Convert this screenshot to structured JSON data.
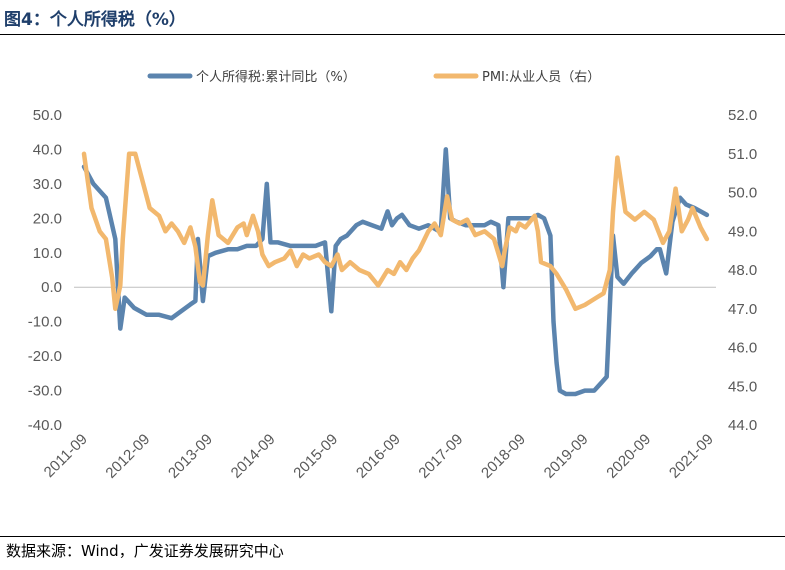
{
  "figure": {
    "title": "图4：个人所得税（%）",
    "source": "数据来源：Wind，广发证券发展研究中心"
  },
  "colors": {
    "series_tax": "#5b84ae",
    "series_pmi": "#f2b86e",
    "axis": "#bfbfbf",
    "title": "#1f3f6b"
  },
  "chart_data": {
    "type": "line",
    "title": "个人所得税（%）",
    "x_labels": [
      "2011-09",
      "2012-09",
      "2013-09",
      "2014-09",
      "2015-09",
      "2016-09",
      "2017-09",
      "2018-09",
      "2019-09",
      "2020-09",
      "2021-09"
    ],
    "y_left": {
      "min": -40,
      "max": 50,
      "ticks": [
        "50.0",
        "40.0",
        "30.0",
        "20.0",
        "10.0",
        "0.0",
        "-10.0",
        "-20.0",
        "-30.0",
        "-40.0"
      ]
    },
    "y_right": {
      "min": 44,
      "max": 52,
      "ticks": [
        "52.0",
        "51.0",
        "50.0",
        "49.0",
        "48.0",
        "47.0",
        "46.0",
        "45.0",
        "44.0"
      ]
    },
    "series": [
      {
        "name": "个人所得税:累计同比（%）",
        "axis": "left",
        "points": [
          [
            0,
            35
          ],
          [
            0.15,
            30
          ],
          [
            0.35,
            26
          ],
          [
            0.5,
            14
          ],
          [
            0.58,
            -12
          ],
          [
            0.65,
            -3
          ],
          [
            0.8,
            -6
          ],
          [
            1.0,
            -8
          ],
          [
            1.2,
            -8
          ],
          [
            1.4,
            -9
          ],
          [
            1.55,
            -7
          ],
          [
            1.7,
            -5
          ],
          [
            1.78,
            -4
          ],
          [
            1.82,
            14
          ],
          [
            1.9,
            -4
          ],
          [
            1.98,
            9
          ],
          [
            2.1,
            10
          ],
          [
            2.3,
            11
          ],
          [
            2.45,
            11
          ],
          [
            2.6,
            12
          ],
          [
            2.75,
            12
          ],
          [
            2.85,
            14
          ],
          [
            2.92,
            30
          ],
          [
            2.98,
            13
          ],
          [
            3.1,
            13
          ],
          [
            3.3,
            12
          ],
          [
            3.5,
            12
          ],
          [
            3.7,
            12
          ],
          [
            3.85,
            13
          ],
          [
            3.95,
            -7
          ],
          [
            4.02,
            12
          ],
          [
            4.1,
            14
          ],
          [
            4.2,
            15
          ],
          [
            4.35,
            18
          ],
          [
            4.45,
            19
          ],
          [
            4.6,
            18
          ],
          [
            4.75,
            17
          ],
          [
            4.85,
            22
          ],
          [
            4.92,
            18
          ],
          [
            5.0,
            20
          ],
          [
            5.08,
            21
          ],
          [
            5.2,
            18
          ],
          [
            5.35,
            17
          ],
          [
            5.5,
            18
          ],
          [
            5.6,
            17
          ],
          [
            5.7,
            16
          ],
          [
            5.78,
            40
          ],
          [
            5.85,
            20
          ],
          [
            5.95,
            19
          ],
          [
            6.1,
            18
          ],
          [
            6.25,
            18
          ],
          [
            6.4,
            18
          ],
          [
            6.5,
            19
          ],
          [
            6.62,
            18
          ],
          [
            6.7,
            0
          ],
          [
            6.78,
            20
          ],
          [
            6.9,
            20
          ],
          [
            7.0,
            20
          ],
          [
            7.15,
            20
          ],
          [
            7.25,
            21
          ],
          [
            7.35,
            20
          ],
          [
            7.45,
            15
          ],
          [
            7.5,
            -10
          ],
          [
            7.55,
            -22
          ],
          [
            7.6,
            -30
          ],
          [
            7.7,
            -31
          ],
          [
            7.85,
            -31
          ],
          [
            8.0,
            -30
          ],
          [
            8.15,
            -30
          ],
          [
            8.25,
            -28
          ],
          [
            8.35,
            -26
          ],
          [
            8.45,
            15
          ],
          [
            8.52,
            3
          ],
          [
            8.62,
            1
          ],
          [
            8.75,
            4
          ],
          [
            8.9,
            7
          ],
          [
            9.05,
            9
          ],
          [
            9.15,
            11
          ],
          [
            9.2,
            11
          ],
          [
            9.3,
            4
          ],
          [
            9.4,
            19
          ],
          [
            9.52,
            26
          ],
          [
            9.62,
            24
          ],
          [
            9.75,
            23
          ],
          [
            9.85,
            22
          ],
          [
            9.95,
            21
          ]
        ]
      },
      {
        "name": "PMI:从业人员（右）",
        "axis": "right",
        "points": [
          [
            0,
            51.0
          ],
          [
            0.12,
            49.6
          ],
          [
            0.25,
            49.0
          ],
          [
            0.35,
            48.8
          ],
          [
            0.45,
            47.8
          ],
          [
            0.5,
            47.0
          ],
          [
            0.58,
            47.6
          ],
          [
            0.62,
            48.8
          ],
          [
            0.72,
            51.0
          ],
          [
            0.82,
            51.0
          ],
          [
            0.95,
            50.2
          ],
          [
            1.05,
            49.6
          ],
          [
            1.2,
            49.4
          ],
          [
            1.3,
            49.0
          ],
          [
            1.4,
            49.2
          ],
          [
            1.5,
            49.0
          ],
          [
            1.6,
            48.7
          ],
          [
            1.7,
            49.1
          ],
          [
            1.78,
            48.6
          ],
          [
            1.85,
            47.7
          ],
          [
            1.9,
            47.6
          ],
          [
            1.98,
            48.9
          ],
          [
            2.05,
            49.8
          ],
          [
            2.15,
            48.9
          ],
          [
            2.3,
            48.7
          ],
          [
            2.45,
            49.1
          ],
          [
            2.55,
            49.2
          ],
          [
            2.6,
            48.9
          ],
          [
            2.7,
            49.4
          ],
          [
            2.78,
            49.0
          ],
          [
            2.85,
            48.4
          ],
          [
            2.95,
            48.1
          ],
          [
            3.05,
            48.2
          ],
          [
            3.2,
            48.3
          ],
          [
            3.3,
            48.5
          ],
          [
            3.4,
            48.1
          ],
          [
            3.5,
            48.4
          ],
          [
            3.6,
            48.3
          ],
          [
            3.75,
            48.4
          ],
          [
            3.85,
            48.2
          ],
          [
            3.95,
            48.1
          ],
          [
            4.05,
            48.4
          ],
          [
            4.12,
            48.0
          ],
          [
            4.25,
            48.2
          ],
          [
            4.4,
            48.0
          ],
          [
            4.55,
            47.9
          ],
          [
            4.7,
            47.6
          ],
          [
            4.85,
            48.0
          ],
          [
            4.95,
            47.9
          ],
          [
            5.05,
            48.2
          ],
          [
            5.15,
            48.0
          ],
          [
            5.25,
            48.3
          ],
          [
            5.35,
            48.5
          ],
          [
            5.5,
            49.0
          ],
          [
            5.6,
            49.2
          ],
          [
            5.7,
            48.9
          ],
          [
            5.8,
            49.9
          ],
          [
            5.88,
            49.3
          ],
          [
            6.0,
            49.2
          ],
          [
            6.12,
            49.3
          ],
          [
            6.25,
            48.9
          ],
          [
            6.4,
            49.0
          ],
          [
            6.55,
            48.8
          ],
          [
            6.68,
            48.1
          ],
          [
            6.72,
            48.5
          ],
          [
            6.8,
            49.1
          ],
          [
            6.9,
            49.0
          ],
          [
            6.95,
            49.2
          ],
          [
            7.05,
            49.1
          ],
          [
            7.2,
            49.4
          ],
          [
            7.25,
            49.0
          ],
          [
            7.3,
            48.2
          ],
          [
            7.45,
            48.1
          ],
          [
            7.55,
            47.9
          ],
          [
            7.7,
            47.5
          ],
          [
            7.85,
            47.0
          ],
          [
            8.0,
            47.1
          ],
          [
            8.1,
            47.2
          ],
          [
            8.2,
            47.3
          ],
          [
            8.3,
            47.4
          ],
          [
            8.4,
            48.0
          ],
          [
            8.45,
            49.5
          ],
          [
            8.52,
            50.9
          ],
          [
            8.65,
            49.5
          ],
          [
            8.8,
            49.3
          ],
          [
            8.95,
            49.5
          ],
          [
            9.1,
            49.3
          ],
          [
            9.25,
            48.7
          ],
          [
            9.35,
            49.0
          ],
          [
            9.45,
            50.1
          ],
          [
            9.55,
            49.0
          ],
          [
            9.65,
            49.3
          ],
          [
            9.72,
            49.6
          ],
          [
            9.85,
            49.1
          ],
          [
            9.95,
            48.8
          ]
        ]
      }
    ]
  }
}
